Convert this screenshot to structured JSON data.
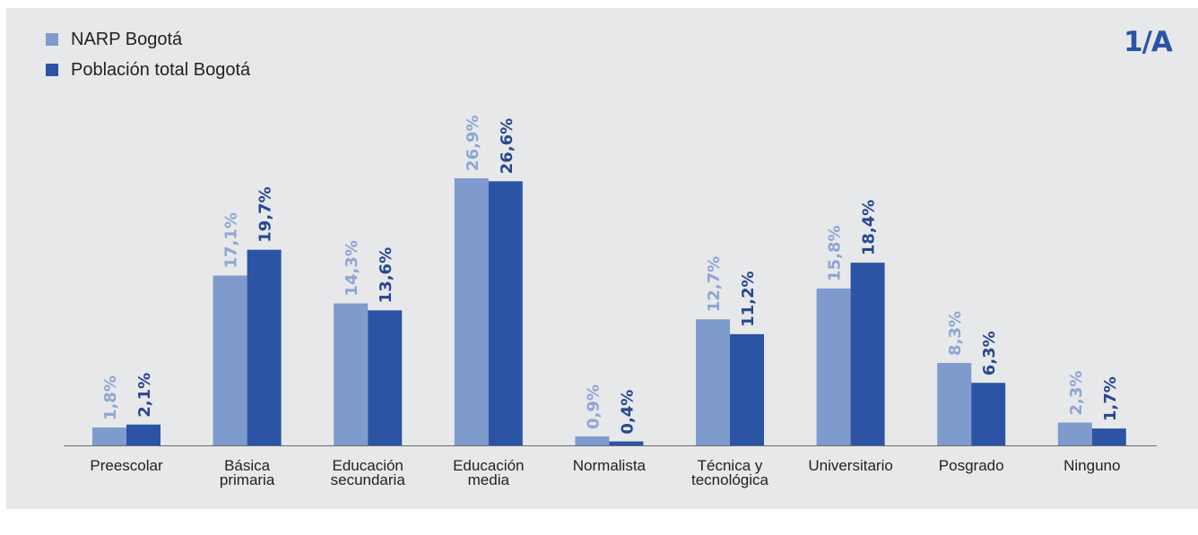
{
  "badge": "1/A",
  "colors": {
    "narp": "#7f9acd",
    "total": "#2b54a4",
    "narp_label": "#8ea6d3",
    "total_label": "#27488f",
    "axis": "#6b6b6b",
    "category_text": "#222222"
  },
  "chart_data": {
    "type": "bar",
    "categories": [
      [
        "Preescolar"
      ],
      [
        "Básica",
        "primaria"
      ],
      [
        "Educación",
        "secundaria"
      ],
      [
        "Educación",
        "media"
      ],
      [
        "Normalista"
      ],
      [
        "Técnica y",
        "tecnológica"
      ],
      [
        "Universitario"
      ],
      [
        "Posgrado"
      ],
      [
        "Ninguno"
      ]
    ],
    "series": [
      {
        "name": "NARP Bogotá",
        "values": [
          1.8,
          17.1,
          14.3,
          26.9,
          0.9,
          12.7,
          15.8,
          8.3,
          2.3
        ],
        "labels": [
          "1,8%",
          "17,1%",
          "14,3%",
          "26,9%",
          "0,9%",
          "12,7%",
          "15,8%",
          "8,3%",
          "2,3%"
        ]
      },
      {
        "name": "Población total Bogotá",
        "values": [
          2.1,
          19.7,
          13.6,
          26.6,
          0.4,
          11.2,
          18.4,
          6.3,
          1.7
        ],
        "labels": [
          "2,1%",
          "19,7%",
          "13,6%",
          "26,6%",
          "0,4%",
          "11,2%",
          "18,4%",
          "6,3%",
          "1,7%"
        ]
      }
    ],
    "legend_position": "top-left",
    "ylim": [
      0,
      30
    ],
    "grid": false
  }
}
